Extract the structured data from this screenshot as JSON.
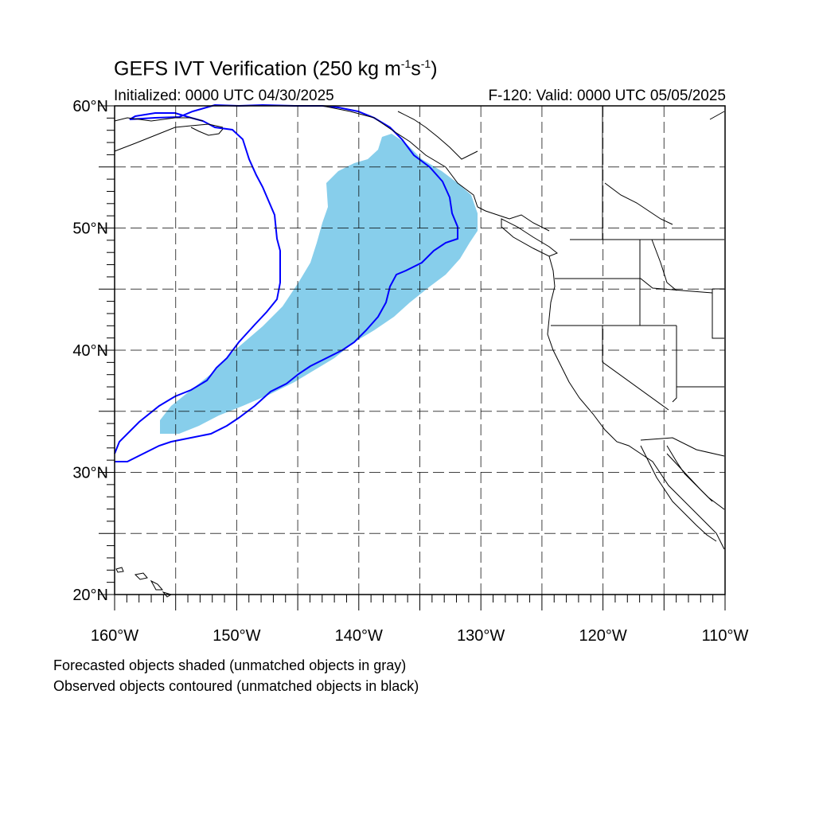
{
  "title": {
    "main": "GEFS IVT Verification (250 kg m",
    "sup1": "-1",
    "mid": "s",
    "sup2": "-1",
    "end": ")"
  },
  "subtitle": {
    "left": "Initialized: 0000 UTC 04/30/2025",
    "right": "F-120: Valid: 0000 UTC 05/05/2025"
  },
  "footer": {
    "line1": "Forecasted objects shaded (unmatched objects in gray)",
    "line2": "Observed objects contoured (unmatched objects in black)"
  },
  "map": {
    "lon_range": [
      -160,
      -110
    ],
    "lat_range": [
      20,
      60
    ],
    "lat_labels": [
      {
        "lat": 60,
        "text": "60°N"
      },
      {
        "lat": 50,
        "text": "50°N"
      },
      {
        "lat": 40,
        "text": "40°N"
      },
      {
        "lat": 30,
        "text": "30°N"
      },
      {
        "lat": 20,
        "text": "20°N"
      }
    ],
    "lon_labels": [
      {
        "lon": -160,
        "text": "160°W"
      },
      {
        "lon": -150,
        "text": "150°W"
      },
      {
        "lon": -140,
        "text": "140°W"
      },
      {
        "lon": -130,
        "text": "130°W"
      },
      {
        "lon": -120,
        "text": "120°W"
      },
      {
        "lon": -110,
        "text": "110°W"
      }
    ],
    "forecast_fill_color": "#87CEEB",
    "observed_contour_color": "#0000FF",
    "coast_color": "#000000"
  }
}
